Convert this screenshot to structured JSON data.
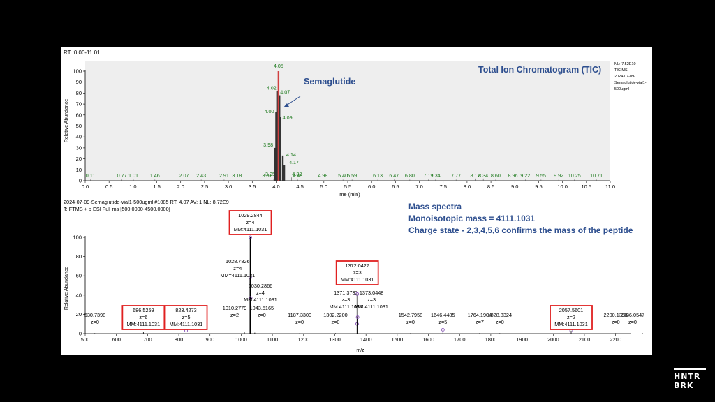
{
  "tic": {
    "rt_range": "RT :0.00-11.01",
    "title": "Total Ion Chromatogram (TIC)",
    "nl_info": [
      "NL: 7.52E10",
      "TIC  MS",
      "2024-07-09-",
      "Semaglutide-vial1-",
      "500ugml"
    ],
    "annotation": "Semaglutide",
    "ylabel": "Relative Abundance",
    "xlabel": "Time (min)",
    "xlim": [
      0,
      11
    ],
    "ylim": [
      0,
      100
    ],
    "xticks": [
      "0.0",
      "0.5",
      "1.0",
      "1.5",
      "2.0",
      "2.5",
      "3.0",
      "3.5",
      "4.0",
      "4.5",
      "5.0",
      "5.5",
      "6.0",
      "6.5",
      "7.0",
      "7.5",
      "8.0",
      "8.5",
      "9.0",
      "9.5",
      "10.0",
      "10.5",
      "11.0"
    ],
    "yticks": [
      "0",
      "10",
      "20",
      "30",
      "40",
      "50",
      "60",
      "70",
      "80",
      "90",
      "100"
    ]
  },
  "ms": {
    "header1": "2024-07-09-Semaglutide-vial1-500ugml #1085 RT: 4.07 AV: 1 NL: 8.72E9",
    "header2": "T: FTMS + p ESI Full ms [500.0000-4500.0000]",
    "title": "Mass spectra",
    "mono": "Monoisotopic mass = 4111.1031",
    "charge": "Charge state - 2,3,4,5,6 confirms the mass of the peptide",
    "ylabel": "Relative Abundance",
    "xlabel": "m/z",
    "xlim": [
      500,
      2250
    ],
    "ylim": [
      0,
      100
    ],
    "xticks": [
      "500",
      "600",
      "700",
      "800",
      "900",
      "1000",
      "1100",
      "1200",
      "1300",
      "1400",
      "1500",
      "1600",
      "1700",
      "1800",
      "1900",
      "2000",
      "2100",
      "2200"
    ],
    "yticks": [
      "0",
      "20",
      "40",
      "60",
      "80",
      "100"
    ]
  },
  "logo": [
    "HNTR",
    "BRK"
  ],
  "chart_data": [
    {
      "type": "line",
      "title": "Total Ion Chromatogram (TIC)",
      "xlabel": "Time (min)",
      "ylabel": "Relative Abundance",
      "xlim": [
        0,
        11
      ],
      "ylim": [
        0,
        100
      ],
      "peaks": [
        {
          "x": 0.11,
          "y": 1,
          "label": "0.11"
        },
        {
          "x": 0.77,
          "y": 1,
          "label": "0.77"
        },
        {
          "x": 1.01,
          "y": 1,
          "label": "1.01"
        },
        {
          "x": 1.46,
          "y": 1,
          "label": "1.46"
        },
        {
          "x": 2.07,
          "y": 1,
          "label": "2.07"
        },
        {
          "x": 2.43,
          "y": 1,
          "label": "2.43"
        },
        {
          "x": 2.91,
          "y": 1,
          "label": "2.91"
        },
        {
          "x": 3.18,
          "y": 1,
          "label": "3.18"
        },
        {
          "x": 3.81,
          "y": 1,
          "label": "3.81"
        },
        {
          "x": 3.95,
          "y": 2,
          "label": "3.95"
        },
        {
          "x": 3.98,
          "y": 30,
          "label": "3.98"
        },
        {
          "x": 4.0,
          "y": 63,
          "label": "4.00"
        },
        {
          "x": 4.02,
          "y": 82,
          "label": "4.02"
        },
        {
          "x": 4.05,
          "y": 100,
          "label": "4.05"
        },
        {
          "x": 4.07,
          "y": 78,
          "label": "4.07"
        },
        {
          "x": 4.09,
          "y": 58,
          "label": "4.09"
        },
        {
          "x": 4.14,
          "y": 23,
          "label": "4.14"
        },
        {
          "x": 4.17,
          "y": 14,
          "label": "4.17"
        },
        {
          "x": 4.32,
          "y": 3,
          "label": "4.32"
        },
        {
          "x": 4.45,
          "y": 1,
          "label": "4.45"
        },
        {
          "x": 4.98,
          "y": 1,
          "label": "4.98"
        },
        {
          "x": 5.4,
          "y": 1,
          "label": "5.40"
        },
        {
          "x": 5.59,
          "y": 1,
          "label": "5.59"
        },
        {
          "x": 6.13,
          "y": 1,
          "label": "6.13"
        },
        {
          "x": 6.47,
          "y": 1,
          "label": "6.47"
        },
        {
          "x": 6.8,
          "y": 1,
          "label": "6.80"
        },
        {
          "x": 7.19,
          "y": 1,
          "label": "7.19"
        },
        {
          "x": 7.34,
          "y": 1,
          "label": "7.34"
        },
        {
          "x": 7.77,
          "y": 1,
          "label": "7.77"
        },
        {
          "x": 8.17,
          "y": 2,
          "label": "8.17"
        },
        {
          "x": 8.34,
          "y": 2,
          "label": "8.34"
        },
        {
          "x": 8.6,
          "y": 1,
          "label": "8.60"
        },
        {
          "x": 8.96,
          "y": 1,
          "label": "8.96"
        },
        {
          "x": 9.22,
          "y": 1,
          "label": "9.22"
        },
        {
          "x": 9.55,
          "y": 1,
          "label": "9.55"
        },
        {
          "x": 9.92,
          "y": 1,
          "label": "9.92"
        },
        {
          "x": 10.25,
          "y": 1,
          "label": "10.25"
        },
        {
          "x": 10.71,
          "y": 1,
          "label": "10.71"
        }
      ]
    },
    {
      "type": "bar",
      "title": "Mass spectra",
      "xlabel": "m/z",
      "ylabel": "Relative Abundance",
      "xlim": [
        500,
        2250
      ],
      "ylim": [
        0,
        100
      ],
      "peaks": [
        {
          "x": 530.7398,
          "y": 0.5,
          "lines": [
            "530.7398",
            "z=0"
          ],
          "boxed": false
        },
        {
          "x": 686.5259,
          "y": 2,
          "lines": [
            "686.5259",
            "z=6",
            "MM:4111.1031"
          ],
          "boxed": true
        },
        {
          "x": 823.4273,
          "y": 3,
          "lines": [
            "823.4273",
            "z=5",
            "MM:4111.1031"
          ],
          "boxed": true
        },
        {
          "x": 1010.2779,
          "y": 2,
          "lines": [
            "1010.2779",
            "z=2"
          ],
          "boxed": false
        },
        {
          "x": 1028.7826,
          "y": 58,
          "lines": [
            "1028.7826",
            "z=4",
            "MM=4111.1031"
          ],
          "boxed": false
        },
        {
          "x": 1029.2844,
          "y": 100,
          "lines": [
            "1029.2844",
            "z=4",
            "MM:4111.1031"
          ],
          "boxed": true
        },
        {
          "x": 1030.2866,
          "y": 37,
          "lines": [
            "1030.2866",
            "z=4",
            "MM:4111.1031"
          ],
          "boxed": false
        },
        {
          "x": 1043.5165,
          "y": 1,
          "lines": [
            "1043.5165",
            "z=0"
          ],
          "boxed": false
        },
        {
          "x": 1187.33,
          "y": 0.5,
          "lines": [
            "1187.3300",
            "z=0"
          ],
          "boxed": false
        },
        {
          "x": 1302.22,
          "y": 0.5,
          "lines": [
            "1302.2200",
            "z=0"
          ],
          "boxed": false
        },
        {
          "x": 1371.3732,
          "y": 10,
          "lines": [
            "1371.3732",
            "z=3",
            "MM:4111.1031"
          ],
          "boxed": false
        },
        {
          "x": 1372.0427,
          "y": 41,
          "lines": [
            "1372.0427",
            "z=3",
            "MM:4111.1031"
          ],
          "boxed": true
        },
        {
          "x": 1373.0448,
          "y": 17,
          "lines": [
            "1373.0448",
            "z=3",
            "MM:4111.1031"
          ],
          "boxed": false
        },
        {
          "x": 1542.7958,
          "y": 0.5,
          "lines": [
            "1542.7958",
            "z=0"
          ],
          "boxed": false
        },
        {
          "x": 1646.4485,
          "y": 4,
          "lines": [
            "1646.4485",
            "z=5"
          ],
          "boxed": false
        },
        {
          "x": 1764.1904,
          "y": 0.5,
          "lines": [
            "1764.1904",
            "z=7"
          ],
          "boxed": false
        },
        {
          "x": 1828.8324,
          "y": 0.5,
          "lines": [
            "1828.8324",
            "z=0"
          ],
          "boxed": false
        },
        {
          "x": 2057.5601,
          "y": 3,
          "lines": [
            "2057.5601",
            "z=2",
            "MM:4111.1031"
          ],
          "boxed": true
        },
        {
          "x": 2200.1396,
          "y": 0.5,
          "lines": [
            "2200.1396",
            "z=0"
          ],
          "boxed": false
        },
        {
          "x": 2286.0547,
          "y": 0.5,
          "lines": [
            "2286.0547",
            "z=0"
          ],
          "boxed": false
        }
      ]
    }
  ]
}
